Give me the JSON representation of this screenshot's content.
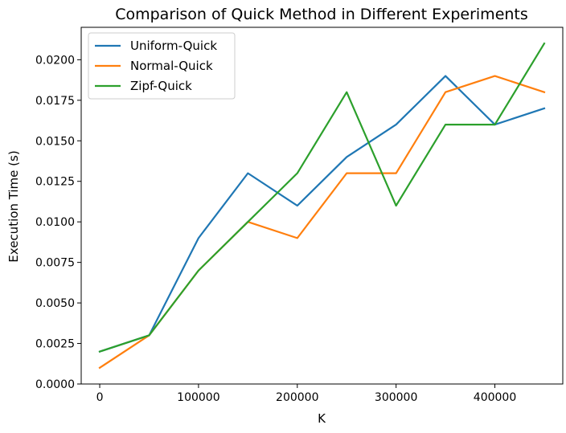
{
  "chart_data": {
    "type": "line",
    "title": "Comparison of Quick Method in Different Experiments",
    "xlabel": "K",
    "ylabel": "Execution Time (s)",
    "x": [
      0,
      50000,
      100000,
      150000,
      200000,
      250000,
      300000,
      350000,
      400000,
      450000
    ],
    "xlim": [
      -18750,
      468750
    ],
    "ylim": [
      0,
      0.022
    ],
    "x_ticks": [
      0,
      100000,
      200000,
      300000,
      400000
    ],
    "x_tick_labels": [
      "0",
      "100000",
      "200000",
      "300000",
      "400000"
    ],
    "y_ticks": [
      0,
      0.0025,
      0.005,
      0.0075,
      0.01,
      0.0125,
      0.015,
      0.0175,
      0.02
    ],
    "y_tick_labels": [
      "0.0000",
      "0.0025",
      "0.0050",
      "0.0075",
      "0.0100",
      "0.0125",
      "0.0150",
      "0.0175",
      "0.0200"
    ],
    "grid": false,
    "legend_position": "top-left",
    "series": [
      {
        "name": "Uniform-Quick",
        "color": "#1f77b4",
        "values": [
          0.002,
          0.003,
          0.009,
          0.013,
          0.011,
          0.014,
          0.016,
          0.019,
          0.016,
          0.017
        ]
      },
      {
        "name": "Normal-Quick",
        "color": "#ff7f0e",
        "values": [
          0.001,
          0.003,
          0.007,
          0.01,
          0.009,
          0.013,
          0.013,
          0.018,
          0.019,
          0.018
        ]
      },
      {
        "name": "Zipf-Quick",
        "color": "#2ca02c",
        "values": [
          0.002,
          0.003,
          0.007,
          0.01,
          0.013,
          0.018,
          0.011,
          0.016,
          0.016,
          0.021
        ]
      }
    ]
  }
}
